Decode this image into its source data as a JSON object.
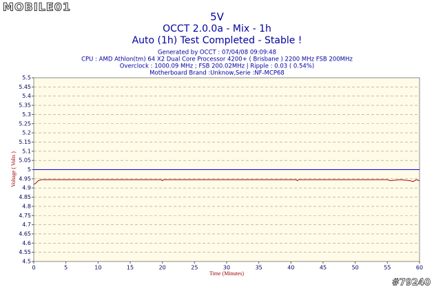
{
  "watermark": {
    "logo": "MOBILE01",
    "id": "#79240"
  },
  "chart_data": {
    "type": "line",
    "title": "5V",
    "subtitle": "OCCT 2.0.0a - Mix - 1h",
    "status": "Auto (1h) Test Completed - Stable !",
    "info": [
      "Generated by OCCT : 07/04/08 09:09:48",
      "CPU : AMD Athlon(tm) 64 X2 Dual Core Processor 4200+ ( Brisbane ) 2200 MHz FSB 200MHz",
      "Overclock : 1000.09 MHz ; FSB 200.02MHz | Ripple : 0.03 ( 0.54%)",
      "Motherboard Brand :Unknow,Serie :NF-MCP68"
    ],
    "x_label": "Time (Minutes)",
    "y_label": "Voltage ( Volts )",
    "x": [
      0,
      0.3,
      0.7,
      1.2,
      2,
      10,
      19.8,
      20,
      20.2,
      30,
      40.8,
      41,
      41.2,
      50,
      55,
      55.5,
      57,
      58.5,
      59,
      59.5,
      60
    ],
    "series": [
      {
        "color": "#a00000",
        "values": [
          4.92,
          4.925,
          4.94,
          4.945,
          4.945,
          4.945,
          4.945,
          4.94,
          4.945,
          4.945,
          4.945,
          4.94,
          4.945,
          4.945,
          4.945,
          4.94,
          4.945,
          4.94,
          4.935,
          4.945,
          4.94
        ]
      }
    ],
    "reference_line": {
      "value": 5,
      "color": "#0000ff"
    },
    "xlim": [
      0,
      60
    ],
    "xticks": [
      0,
      5,
      10,
      15,
      20,
      25,
      30,
      35,
      40,
      45,
      50,
      55,
      60
    ],
    "ylim": [
      4.5,
      5.5
    ],
    "yticks": [
      4.5,
      4.55,
      4.6,
      4.65,
      4.7,
      4.75,
      4.8,
      4.85,
      4.9,
      4.95,
      5,
      5.05,
      5.1,
      5.15,
      5.2,
      5.25,
      5.3,
      5.35,
      5.4,
      5.45,
      5.5
    ],
    "grid": true
  }
}
